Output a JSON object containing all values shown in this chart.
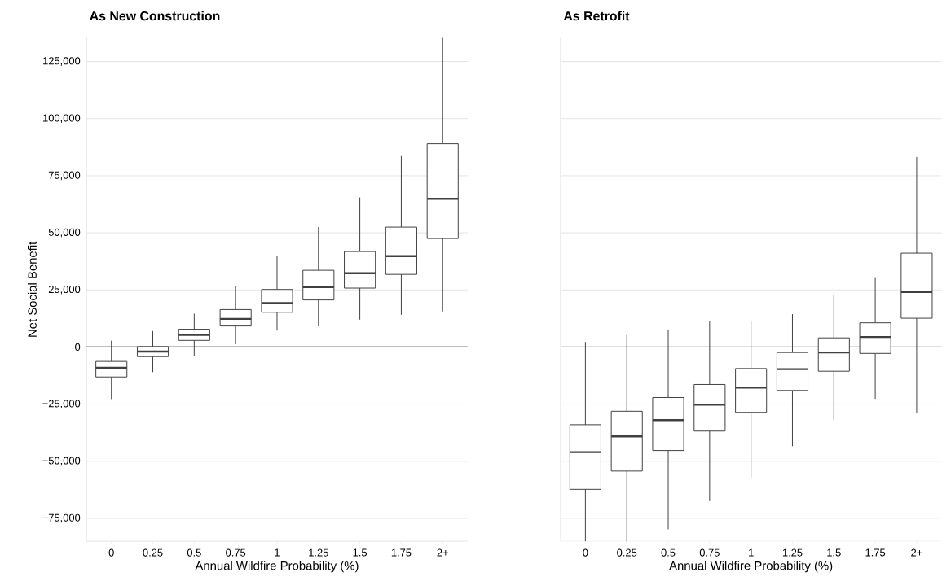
{
  "chart_data": [
    {
      "type": "box",
      "title": "As New Construction",
      "xlabel": "Annual Wildfire Probability (%)",
      "ylabel": "Net Social Benefit",
      "categories": [
        "0",
        "0.25",
        "0.5",
        "0.75",
        "1",
        "1.25",
        "1.5",
        "1.75",
        "2+"
      ],
      "color": "#3f3f3f",
      "boxes": [
        {
          "low": -22800,
          "q1": -13100,
          "median": -9100,
          "q3": -6300,
          "high": 2800
        },
        {
          "low": -11000,
          "q1": -4200,
          "median": -2000,
          "q3": 200,
          "high": 7000
        },
        {
          "low": -3900,
          "q1": 2900,
          "median": 5300,
          "q3": 7800,
          "high": 14600
        },
        {
          "low": 1200,
          "q1": 9200,
          "median": 12300,
          "q3": 16400,
          "high": 26800
        },
        {
          "low": 7200,
          "q1": 15200,
          "median": 19200,
          "q3": 25200,
          "high": 40000
        },
        {
          "low": 9100,
          "q1": 20600,
          "median": 26200,
          "q3": 33600,
          "high": 52500
        },
        {
          "low": 12000,
          "q1": 25800,
          "median": 32300,
          "q3": 41800,
          "high": 65500
        },
        {
          "low": 14100,
          "q1": 31800,
          "median": 39800,
          "q3": 52500,
          "high": 83600
        },
        {
          "low": 15600,
          "q1": 47500,
          "median": 64900,
          "q3": 89000,
          "high": 135300
        }
      ],
      "ylim": [
        -85000,
        135300
      ],
      "yticks": [
        {
          "value": -75000,
          "label": "−75,000"
        },
        {
          "value": -50000,
          "label": "−50,000"
        },
        {
          "value": -25000,
          "label": "−25,000"
        },
        0,
        {
          "value": 25000,
          "label": "25,000"
        },
        {
          "value": 50000,
          "label": "50,000"
        },
        {
          "value": 75000,
          "label": "75,000"
        },
        {
          "value": 100000,
          "label": "100,000"
        },
        {
          "value": 125000,
          "label": "125,000"
        }
      ],
      "grid": "y",
      "ref_lines": [
        {
          "axis": "y",
          "value": 0,
          "color": "#000000"
        }
      ]
    },
    {
      "type": "box",
      "title": "As Retrofit",
      "xlabel": "Annual Wildfire Probability (%)",
      "categories": [
        "0",
        "0.25",
        "0.5",
        "0.75",
        "1",
        "1.25",
        "1.5",
        "1.75",
        "2+"
      ],
      "color": "#3f3f3f",
      "boxes": [
        {
          "low": -85000,
          "q1": -62300,
          "median": -46000,
          "q3": -34000,
          "high": 2200
        },
        {
          "low": -85000,
          "q1": -54300,
          "median": -39100,
          "q3": -28100,
          "high": 5200
        },
        {
          "low": -79800,
          "q1": -45300,
          "median": -32000,
          "q3": -22100,
          "high": 7700
        },
        {
          "low": -67500,
          "q1": -36800,
          "median": -25200,
          "q3": -16400,
          "high": 11300
        },
        {
          "low": -57000,
          "q1": -28600,
          "median": -17800,
          "q3": -9400,
          "high": 11600
        },
        {
          "low": -43400,
          "q1": -19000,
          "median": -9700,
          "q3": -2400,
          "high": 14400
        },
        {
          "low": -32000,
          "q1": -10600,
          "median": -2400,
          "q3": 4000,
          "high": 23000
        },
        {
          "low": -22700,
          "q1": -2800,
          "median": 4400,
          "q3": 10600,
          "high": 30200
        },
        {
          "low": -28900,
          "q1": 12600,
          "median": 24100,
          "q3": 41100,
          "high": 83200
        }
      ],
      "ylim": [
        -85000,
        135300
      ],
      "yticks": [
        -75000,
        -50000,
        -25000,
        0,
        25000,
        50000,
        75000,
        100000,
        125000
      ],
      "tick_labels": "x",
      "grid": "y",
      "ref_lines": [
        {
          "axis": "y",
          "value": 0,
          "color": "#000000"
        }
      ]
    }
  ]
}
